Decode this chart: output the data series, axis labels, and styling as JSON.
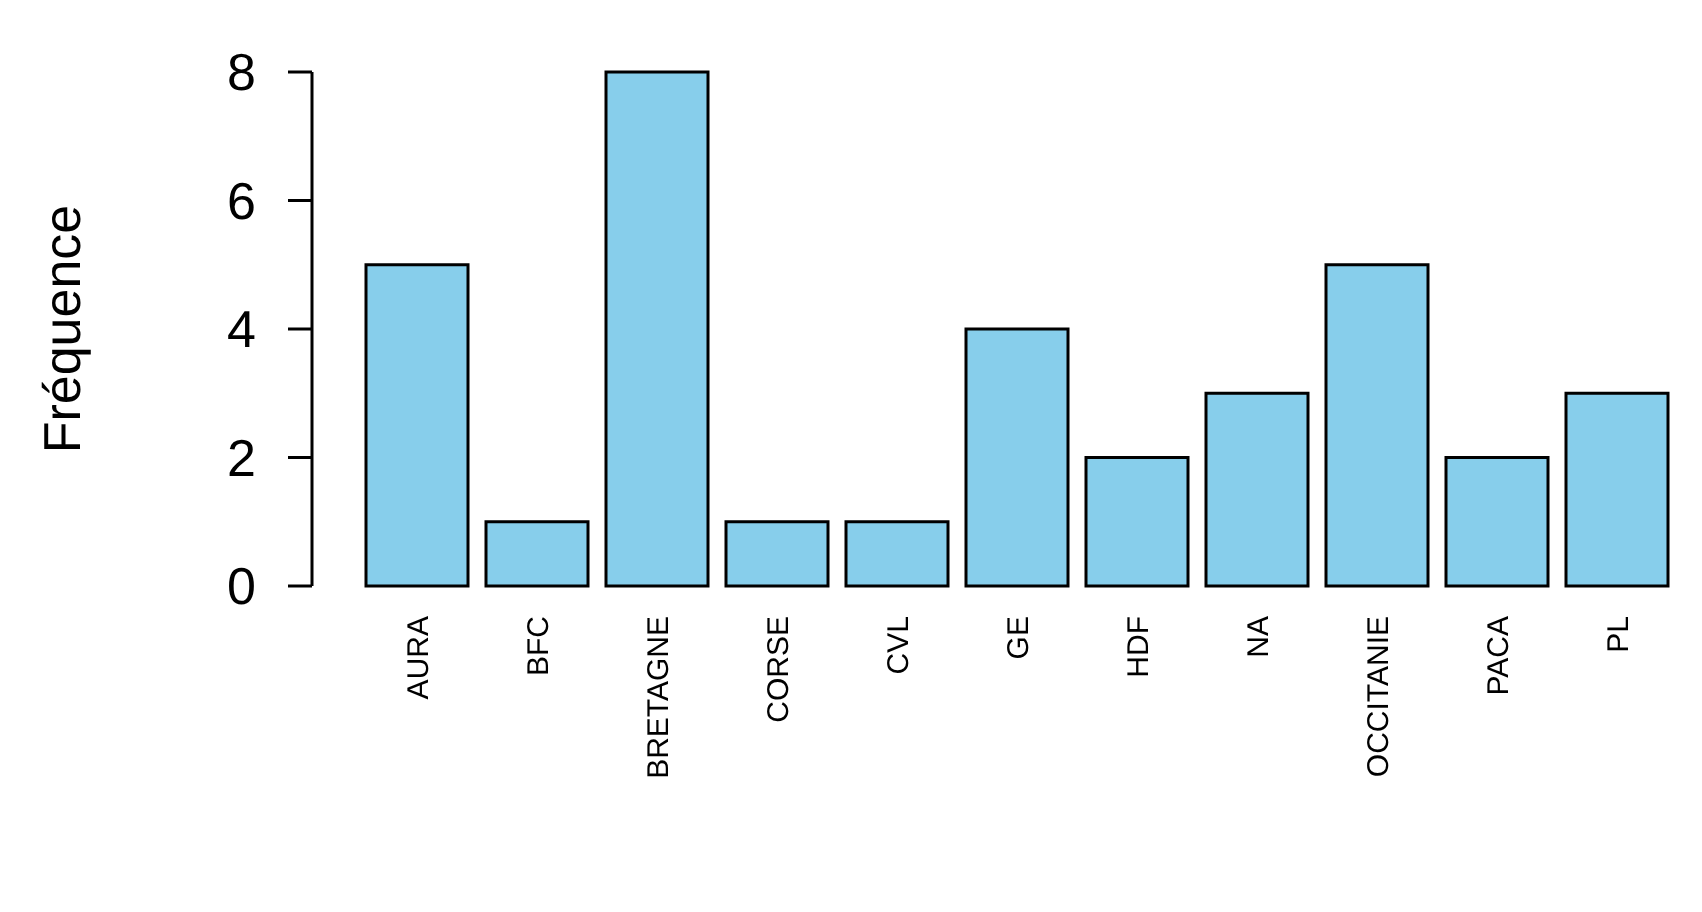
{
  "chart_data": {
    "type": "bar",
    "ylabel": "Fréquence",
    "categories": [
      "AURA",
      "BFC",
      "BRETAGNE",
      "CORSE",
      "CVL",
      "GE",
      "HDF",
      "NA",
      "OCCITANIE",
      "PACA",
      "PL"
    ],
    "values": [
      5,
      1,
      8,
      1,
      1,
      4,
      2,
      3,
      5,
      2,
      3
    ],
    "color": "#87ceeb",
    "ylim": [
      0,
      8
    ],
    "yticks": [
      0,
      2,
      4,
      6,
      8
    ]
  }
}
